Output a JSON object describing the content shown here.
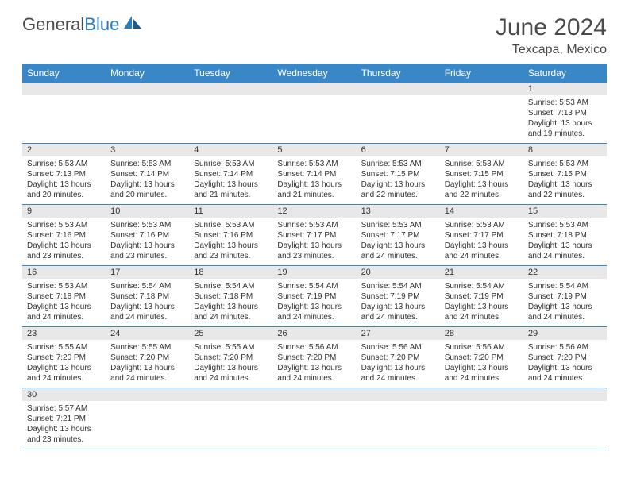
{
  "logo": {
    "text1": "General",
    "text2": "Blue"
  },
  "title": "June 2024",
  "location": "Texcapa, Mexico",
  "colors": {
    "header_bg": "#3a87c7",
    "header_text": "#ffffff",
    "numbar_bg": "#e8e8e8",
    "text": "#333333",
    "divider": "#3a87c7",
    "logo_gray": "#4a4a4a",
    "logo_blue": "#2b7bbf"
  },
  "day_names": [
    "Sunday",
    "Monday",
    "Tuesday",
    "Wednesday",
    "Thursday",
    "Friday",
    "Saturday"
  ],
  "weeks": [
    [
      {
        "n": "",
        "sr": "",
        "ss": "",
        "dl": ""
      },
      {
        "n": "",
        "sr": "",
        "ss": "",
        "dl": ""
      },
      {
        "n": "",
        "sr": "",
        "ss": "",
        "dl": ""
      },
      {
        "n": "",
        "sr": "",
        "ss": "",
        "dl": ""
      },
      {
        "n": "",
        "sr": "",
        "ss": "",
        "dl": ""
      },
      {
        "n": "",
        "sr": "",
        "ss": "",
        "dl": ""
      },
      {
        "n": "1",
        "sr": "Sunrise: 5:53 AM",
        "ss": "Sunset: 7:13 PM",
        "dl": "Daylight: 13 hours and 19 minutes."
      }
    ],
    [
      {
        "n": "2",
        "sr": "Sunrise: 5:53 AM",
        "ss": "Sunset: 7:13 PM",
        "dl": "Daylight: 13 hours and 20 minutes."
      },
      {
        "n": "3",
        "sr": "Sunrise: 5:53 AM",
        "ss": "Sunset: 7:14 PM",
        "dl": "Daylight: 13 hours and 20 minutes."
      },
      {
        "n": "4",
        "sr": "Sunrise: 5:53 AM",
        "ss": "Sunset: 7:14 PM",
        "dl": "Daylight: 13 hours and 21 minutes."
      },
      {
        "n": "5",
        "sr": "Sunrise: 5:53 AM",
        "ss": "Sunset: 7:14 PM",
        "dl": "Daylight: 13 hours and 21 minutes."
      },
      {
        "n": "6",
        "sr": "Sunrise: 5:53 AM",
        "ss": "Sunset: 7:15 PM",
        "dl": "Daylight: 13 hours and 22 minutes."
      },
      {
        "n": "7",
        "sr": "Sunrise: 5:53 AM",
        "ss": "Sunset: 7:15 PM",
        "dl": "Daylight: 13 hours and 22 minutes."
      },
      {
        "n": "8",
        "sr": "Sunrise: 5:53 AM",
        "ss": "Sunset: 7:15 PM",
        "dl": "Daylight: 13 hours and 22 minutes."
      }
    ],
    [
      {
        "n": "9",
        "sr": "Sunrise: 5:53 AM",
        "ss": "Sunset: 7:16 PM",
        "dl": "Daylight: 13 hours and 23 minutes."
      },
      {
        "n": "10",
        "sr": "Sunrise: 5:53 AM",
        "ss": "Sunset: 7:16 PM",
        "dl": "Daylight: 13 hours and 23 minutes."
      },
      {
        "n": "11",
        "sr": "Sunrise: 5:53 AM",
        "ss": "Sunset: 7:16 PM",
        "dl": "Daylight: 13 hours and 23 minutes."
      },
      {
        "n": "12",
        "sr": "Sunrise: 5:53 AM",
        "ss": "Sunset: 7:17 PM",
        "dl": "Daylight: 13 hours and 23 minutes."
      },
      {
        "n": "13",
        "sr": "Sunrise: 5:53 AM",
        "ss": "Sunset: 7:17 PM",
        "dl": "Daylight: 13 hours and 24 minutes."
      },
      {
        "n": "14",
        "sr": "Sunrise: 5:53 AM",
        "ss": "Sunset: 7:17 PM",
        "dl": "Daylight: 13 hours and 24 minutes."
      },
      {
        "n": "15",
        "sr": "Sunrise: 5:53 AM",
        "ss": "Sunset: 7:18 PM",
        "dl": "Daylight: 13 hours and 24 minutes."
      }
    ],
    [
      {
        "n": "16",
        "sr": "Sunrise: 5:53 AM",
        "ss": "Sunset: 7:18 PM",
        "dl": "Daylight: 13 hours and 24 minutes."
      },
      {
        "n": "17",
        "sr": "Sunrise: 5:54 AM",
        "ss": "Sunset: 7:18 PM",
        "dl": "Daylight: 13 hours and 24 minutes."
      },
      {
        "n": "18",
        "sr": "Sunrise: 5:54 AM",
        "ss": "Sunset: 7:18 PM",
        "dl": "Daylight: 13 hours and 24 minutes."
      },
      {
        "n": "19",
        "sr": "Sunrise: 5:54 AM",
        "ss": "Sunset: 7:19 PM",
        "dl": "Daylight: 13 hours and 24 minutes."
      },
      {
        "n": "20",
        "sr": "Sunrise: 5:54 AM",
        "ss": "Sunset: 7:19 PM",
        "dl": "Daylight: 13 hours and 24 minutes."
      },
      {
        "n": "21",
        "sr": "Sunrise: 5:54 AM",
        "ss": "Sunset: 7:19 PM",
        "dl": "Daylight: 13 hours and 24 minutes."
      },
      {
        "n": "22",
        "sr": "Sunrise: 5:54 AM",
        "ss": "Sunset: 7:19 PM",
        "dl": "Daylight: 13 hours and 24 minutes."
      }
    ],
    [
      {
        "n": "23",
        "sr": "Sunrise: 5:55 AM",
        "ss": "Sunset: 7:20 PM",
        "dl": "Daylight: 13 hours and 24 minutes."
      },
      {
        "n": "24",
        "sr": "Sunrise: 5:55 AM",
        "ss": "Sunset: 7:20 PM",
        "dl": "Daylight: 13 hours and 24 minutes."
      },
      {
        "n": "25",
        "sr": "Sunrise: 5:55 AM",
        "ss": "Sunset: 7:20 PM",
        "dl": "Daylight: 13 hours and 24 minutes."
      },
      {
        "n": "26",
        "sr": "Sunrise: 5:56 AM",
        "ss": "Sunset: 7:20 PM",
        "dl": "Daylight: 13 hours and 24 minutes."
      },
      {
        "n": "27",
        "sr": "Sunrise: 5:56 AM",
        "ss": "Sunset: 7:20 PM",
        "dl": "Daylight: 13 hours and 24 minutes."
      },
      {
        "n": "28",
        "sr": "Sunrise: 5:56 AM",
        "ss": "Sunset: 7:20 PM",
        "dl": "Daylight: 13 hours and 24 minutes."
      },
      {
        "n": "29",
        "sr": "Sunrise: 5:56 AM",
        "ss": "Sunset: 7:20 PM",
        "dl": "Daylight: 13 hours and 24 minutes."
      }
    ],
    [
      {
        "n": "30",
        "sr": "Sunrise: 5:57 AM",
        "ss": "Sunset: 7:21 PM",
        "dl": "Daylight: 13 hours and 23 minutes."
      },
      {
        "n": "",
        "sr": "",
        "ss": "",
        "dl": ""
      },
      {
        "n": "",
        "sr": "",
        "ss": "",
        "dl": ""
      },
      {
        "n": "",
        "sr": "",
        "ss": "",
        "dl": ""
      },
      {
        "n": "",
        "sr": "",
        "ss": "",
        "dl": ""
      },
      {
        "n": "",
        "sr": "",
        "ss": "",
        "dl": ""
      },
      {
        "n": "",
        "sr": "",
        "ss": "",
        "dl": ""
      }
    ]
  ]
}
